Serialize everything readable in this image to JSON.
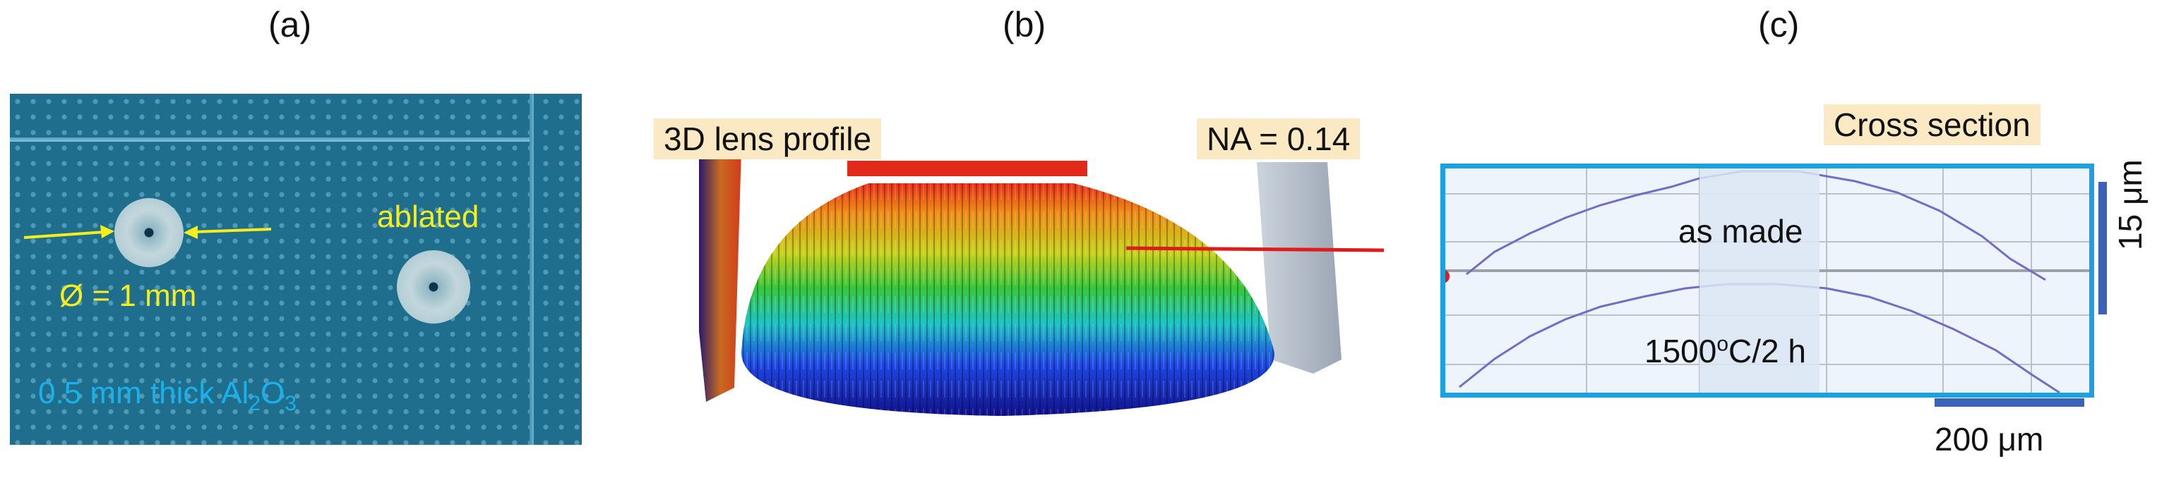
{
  "labels": {
    "a": "(a)",
    "b": "(b)",
    "c": "(c)"
  },
  "panel_a": {
    "diameter": "Ø = 1 mm",
    "ablated": "ablated",
    "thickness_prefix": "0.5 mm thick Al",
    "sub2": "2",
    "o_text": "O",
    "sub3": "3"
  },
  "panel_b": {
    "title": "3D lens profile",
    "na": "NA = 0.14"
  },
  "panel_c": {
    "title": "Cross section",
    "as_made": "as made",
    "anneal_prefix": "1500",
    "anneal_sup": "o",
    "anneal_suffix": "C/2 h",
    "scale_v": "15 μm",
    "scale_h": "200 μm"
  },
  "colors": {
    "frame": "#1ba1e2",
    "tag": "#fbe9c4",
    "yellow_text": "#f6ee1a",
    "blue_text": "#1ab0ea",
    "trace": "#6f6fc8",
    "connector": "#e01b1b"
  }
}
